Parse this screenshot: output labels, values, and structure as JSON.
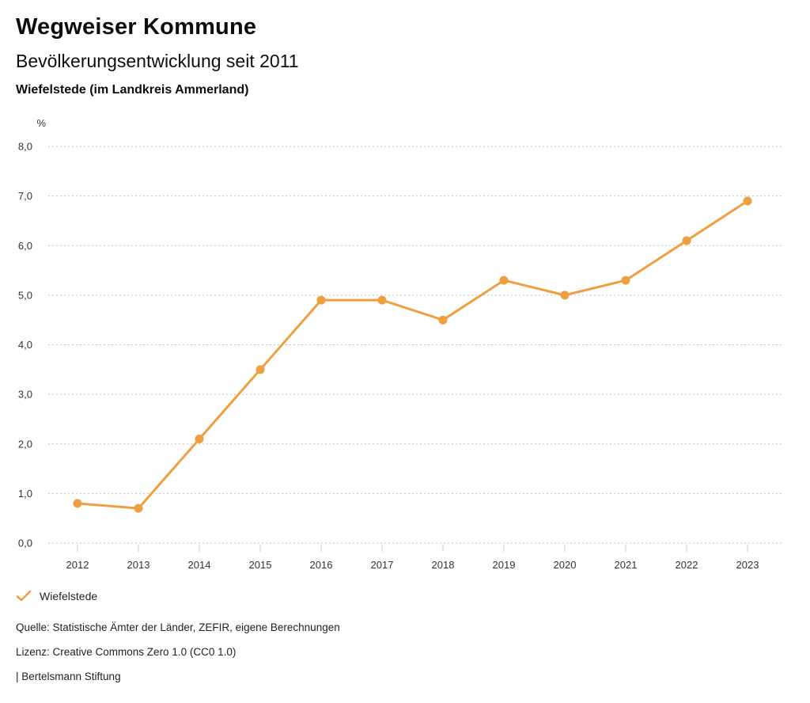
{
  "header": {
    "title": "Wegweiser Kommune",
    "subtitle": "Bevölkerungsentwicklung seit 2011",
    "region": "Wiefelstede (im Landkreis Ammerland)"
  },
  "chart_data": {
    "type": "line",
    "title": "Bevölkerungsentwicklung seit 2011",
    "subtitle": "Wiefelstede (im Landkreis Ammerland)",
    "unit_label": "%",
    "xlabel": "",
    "ylabel": "%",
    "categories": [
      "2012",
      "2013",
      "2014",
      "2015",
      "2016",
      "2017",
      "2018",
      "2019",
      "2020",
      "2021",
      "2022",
      "2023"
    ],
    "series": [
      {
        "name": "Wiefelstede",
        "color": "#F09F40",
        "values": [
          0.8,
          0.7,
          2.1,
          3.5,
          4.9,
          4.9,
          4.5,
          5.3,
          5.0,
          5.3,
          6.1,
          6.9
        ]
      }
    ],
    "ylim": [
      0,
      8
    ],
    "yticks": [
      0,
      1,
      2,
      3,
      4,
      5,
      6,
      7,
      8
    ],
    "ytick_labels": [
      "0,0",
      "1,0",
      "2,0",
      "3,0",
      "4,0",
      "5,0",
      "6,0",
      "7,0",
      "8,0"
    ],
    "grid": "horizontal dotted",
    "legend_position": "bottom-left",
    "marker": "circle"
  },
  "legend": {
    "items": [
      {
        "label": "Wiefelstede",
        "color": "#F09F40",
        "marker": "check"
      }
    ]
  },
  "footer": {
    "source": "Quelle: Statistische Ämter der Länder, ZEFIR, eigene Berechnungen",
    "license": "Lizenz: Creative Commons Zero 1.0 (CC0 1.0)",
    "attribution": "| Bertelsmann Stiftung"
  },
  "colors": {
    "accent": "#F09F40",
    "grid": "#C3C3C3",
    "tick": "#CFCFCF",
    "axis_text": "#333333",
    "text": "#0D0D0D"
  }
}
